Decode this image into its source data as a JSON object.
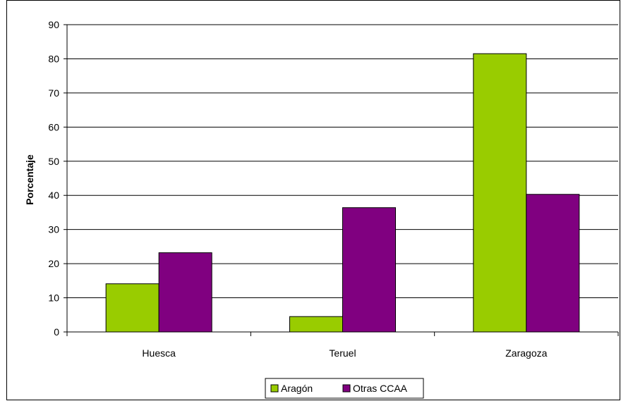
{
  "chart_data": {
    "type": "bar",
    "title": "",
    "xlabel": "",
    "ylabel": "Porcentaje",
    "ylim": [
      0,
      90
    ],
    "yticks": [
      0,
      10,
      20,
      30,
      40,
      50,
      60,
      70,
      80,
      90
    ],
    "categories": [
      "Huesca",
      "Teruel",
      "Zaragoza"
    ],
    "series": [
      {
        "name": "Aragón",
        "values": [
          14.1,
          4.5,
          81.5
        ],
        "color": "#99cc00"
      },
      {
        "name": "Otras CCAA",
        "values": [
          23.2,
          36.4,
          40.3
        ],
        "color": "#800080"
      }
    ],
    "grid": true,
    "legend_position": "bottom"
  }
}
